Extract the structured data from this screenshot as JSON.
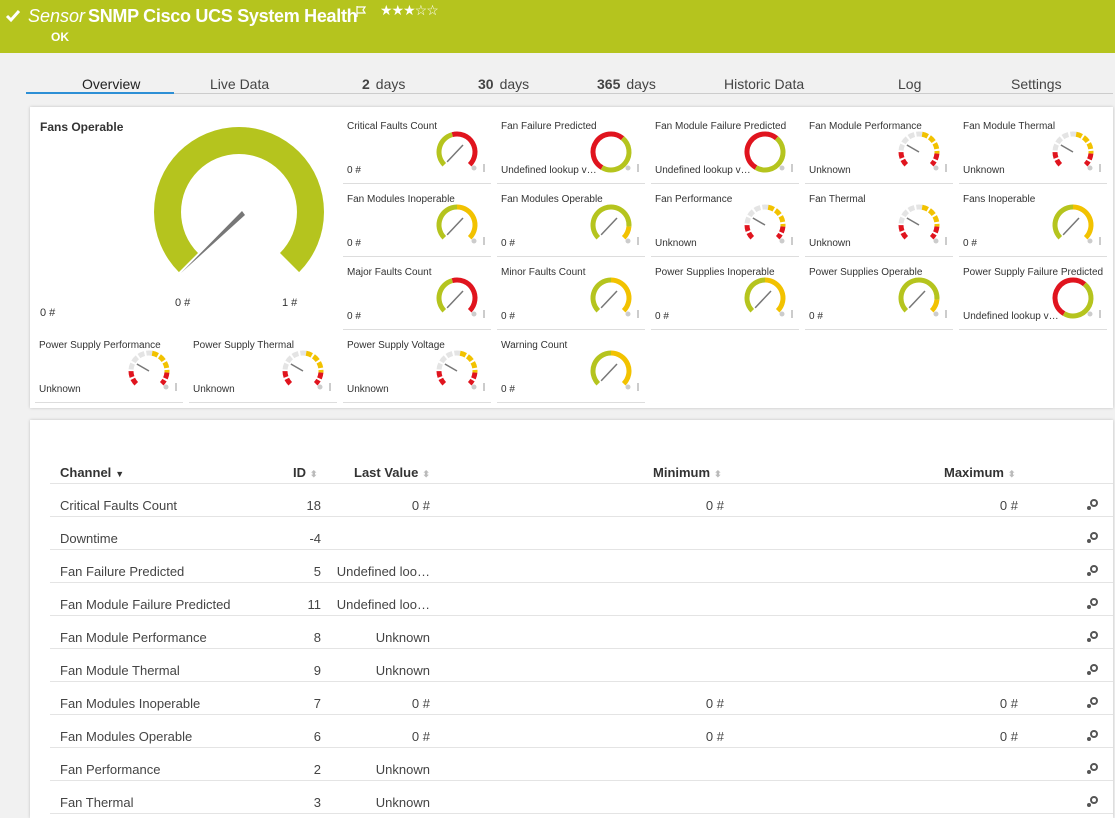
{
  "header": {
    "prefix": "Sensor",
    "title": "SNMP Cisco UCS System Health",
    "status": "OK"
  },
  "tabs": [
    {
      "label": "Overview"
    },
    {
      "label": "Live Data"
    },
    {
      "number": 2,
      "label": "days"
    },
    {
      "number": 30,
      "label": "days"
    },
    {
      "number": 365,
      "label": "days"
    },
    {
      "label": "Historic Data"
    },
    {
      "label": "Log"
    },
    {
      "label": "Settings"
    }
  ],
  "main_gauge": {
    "title": "Fans Operable",
    "value": "0 #",
    "min_label": "0 #",
    "max_label": "1 #"
  },
  "gauges": [
    {
      "name": "Critical Faults Count",
      "value": "0 #",
      "style": "alert"
    },
    {
      "name": "Fan Failure Predicted",
      "value": "Undefined lookup v…",
      "style": "lookup"
    },
    {
      "name": "Fan Module Failure Predicted",
      "value": "Undefined lookup v…",
      "style": "lookup"
    },
    {
      "name": "Fan Module Performance",
      "value": "Unknown",
      "style": "unknown"
    },
    {
      "name": "Fan Module Thermal",
      "value": "Unknown",
      "style": "unknown"
    },
    {
      "name": "Fan Modules Inoperable",
      "value": "0 #",
      "style": "warning"
    },
    {
      "name": "Fan Modules Operable",
      "value": "0 #",
      "style": "ok"
    },
    {
      "name": "Fan Performance",
      "value": "Unknown",
      "style": "unknown"
    },
    {
      "name": "Fan Thermal",
      "value": "Unknown",
      "style": "unknown"
    },
    {
      "name": "Fans Inoperable",
      "value": "0 #",
      "style": "warning"
    },
    {
      "name": "Major Faults Count",
      "value": "0 #",
      "style": "alert"
    },
    {
      "name": "Minor Faults Count",
      "value": "0 #",
      "style": "warning"
    },
    {
      "name": "Power Supplies Inoperable",
      "value": "0 #",
      "style": "warning"
    },
    {
      "name": "Power Supplies Operable",
      "value": "0 #",
      "style": "ok"
    },
    {
      "name": "Power Supply Failure Predicted",
      "value": "Undefined lookup v…",
      "style": "lookup"
    },
    {
      "name": "Power Supply Performance",
      "value": "Unknown",
      "style": "unknown"
    },
    {
      "name": "Power Supply Thermal",
      "value": "Unknown",
      "style": "unknown"
    },
    {
      "name": "Power Supply Voltage",
      "value": "Unknown",
      "style": "unknown"
    },
    {
      "name": "Warning Count",
      "value": "0 #",
      "style": "warning"
    }
  ],
  "table": {
    "columns": [
      "Channel",
      "ID",
      "Last Value",
      "Minimum",
      "Maximum"
    ],
    "rows": [
      [
        "Critical Faults Count",
        18,
        "0 #",
        "0 #",
        "0 #"
      ],
      [
        "Downtime",
        -4,
        null,
        null,
        null
      ],
      [
        "Fan Failure Predicted",
        5,
        "Undefined loo…",
        null,
        null
      ],
      [
        "Fan Module Failure Predicted",
        11,
        "Undefined loo…",
        null,
        null
      ],
      [
        "Fan Module Performance",
        8,
        "Unknown",
        null,
        null
      ],
      [
        "Fan Module Thermal",
        9,
        "Unknown",
        null,
        null
      ],
      [
        "Fan Modules Inoperable",
        7,
        "0 #",
        "0 #",
        "0 #"
      ],
      [
        "Fan Modules Operable",
        6,
        "0 #",
        "0 #",
        "0 #"
      ],
      [
        "Fan Performance",
        2,
        "Unknown",
        null,
        null
      ],
      [
        "Fan Thermal",
        3,
        "Unknown",
        null,
        null
      ]
    ]
  }
}
